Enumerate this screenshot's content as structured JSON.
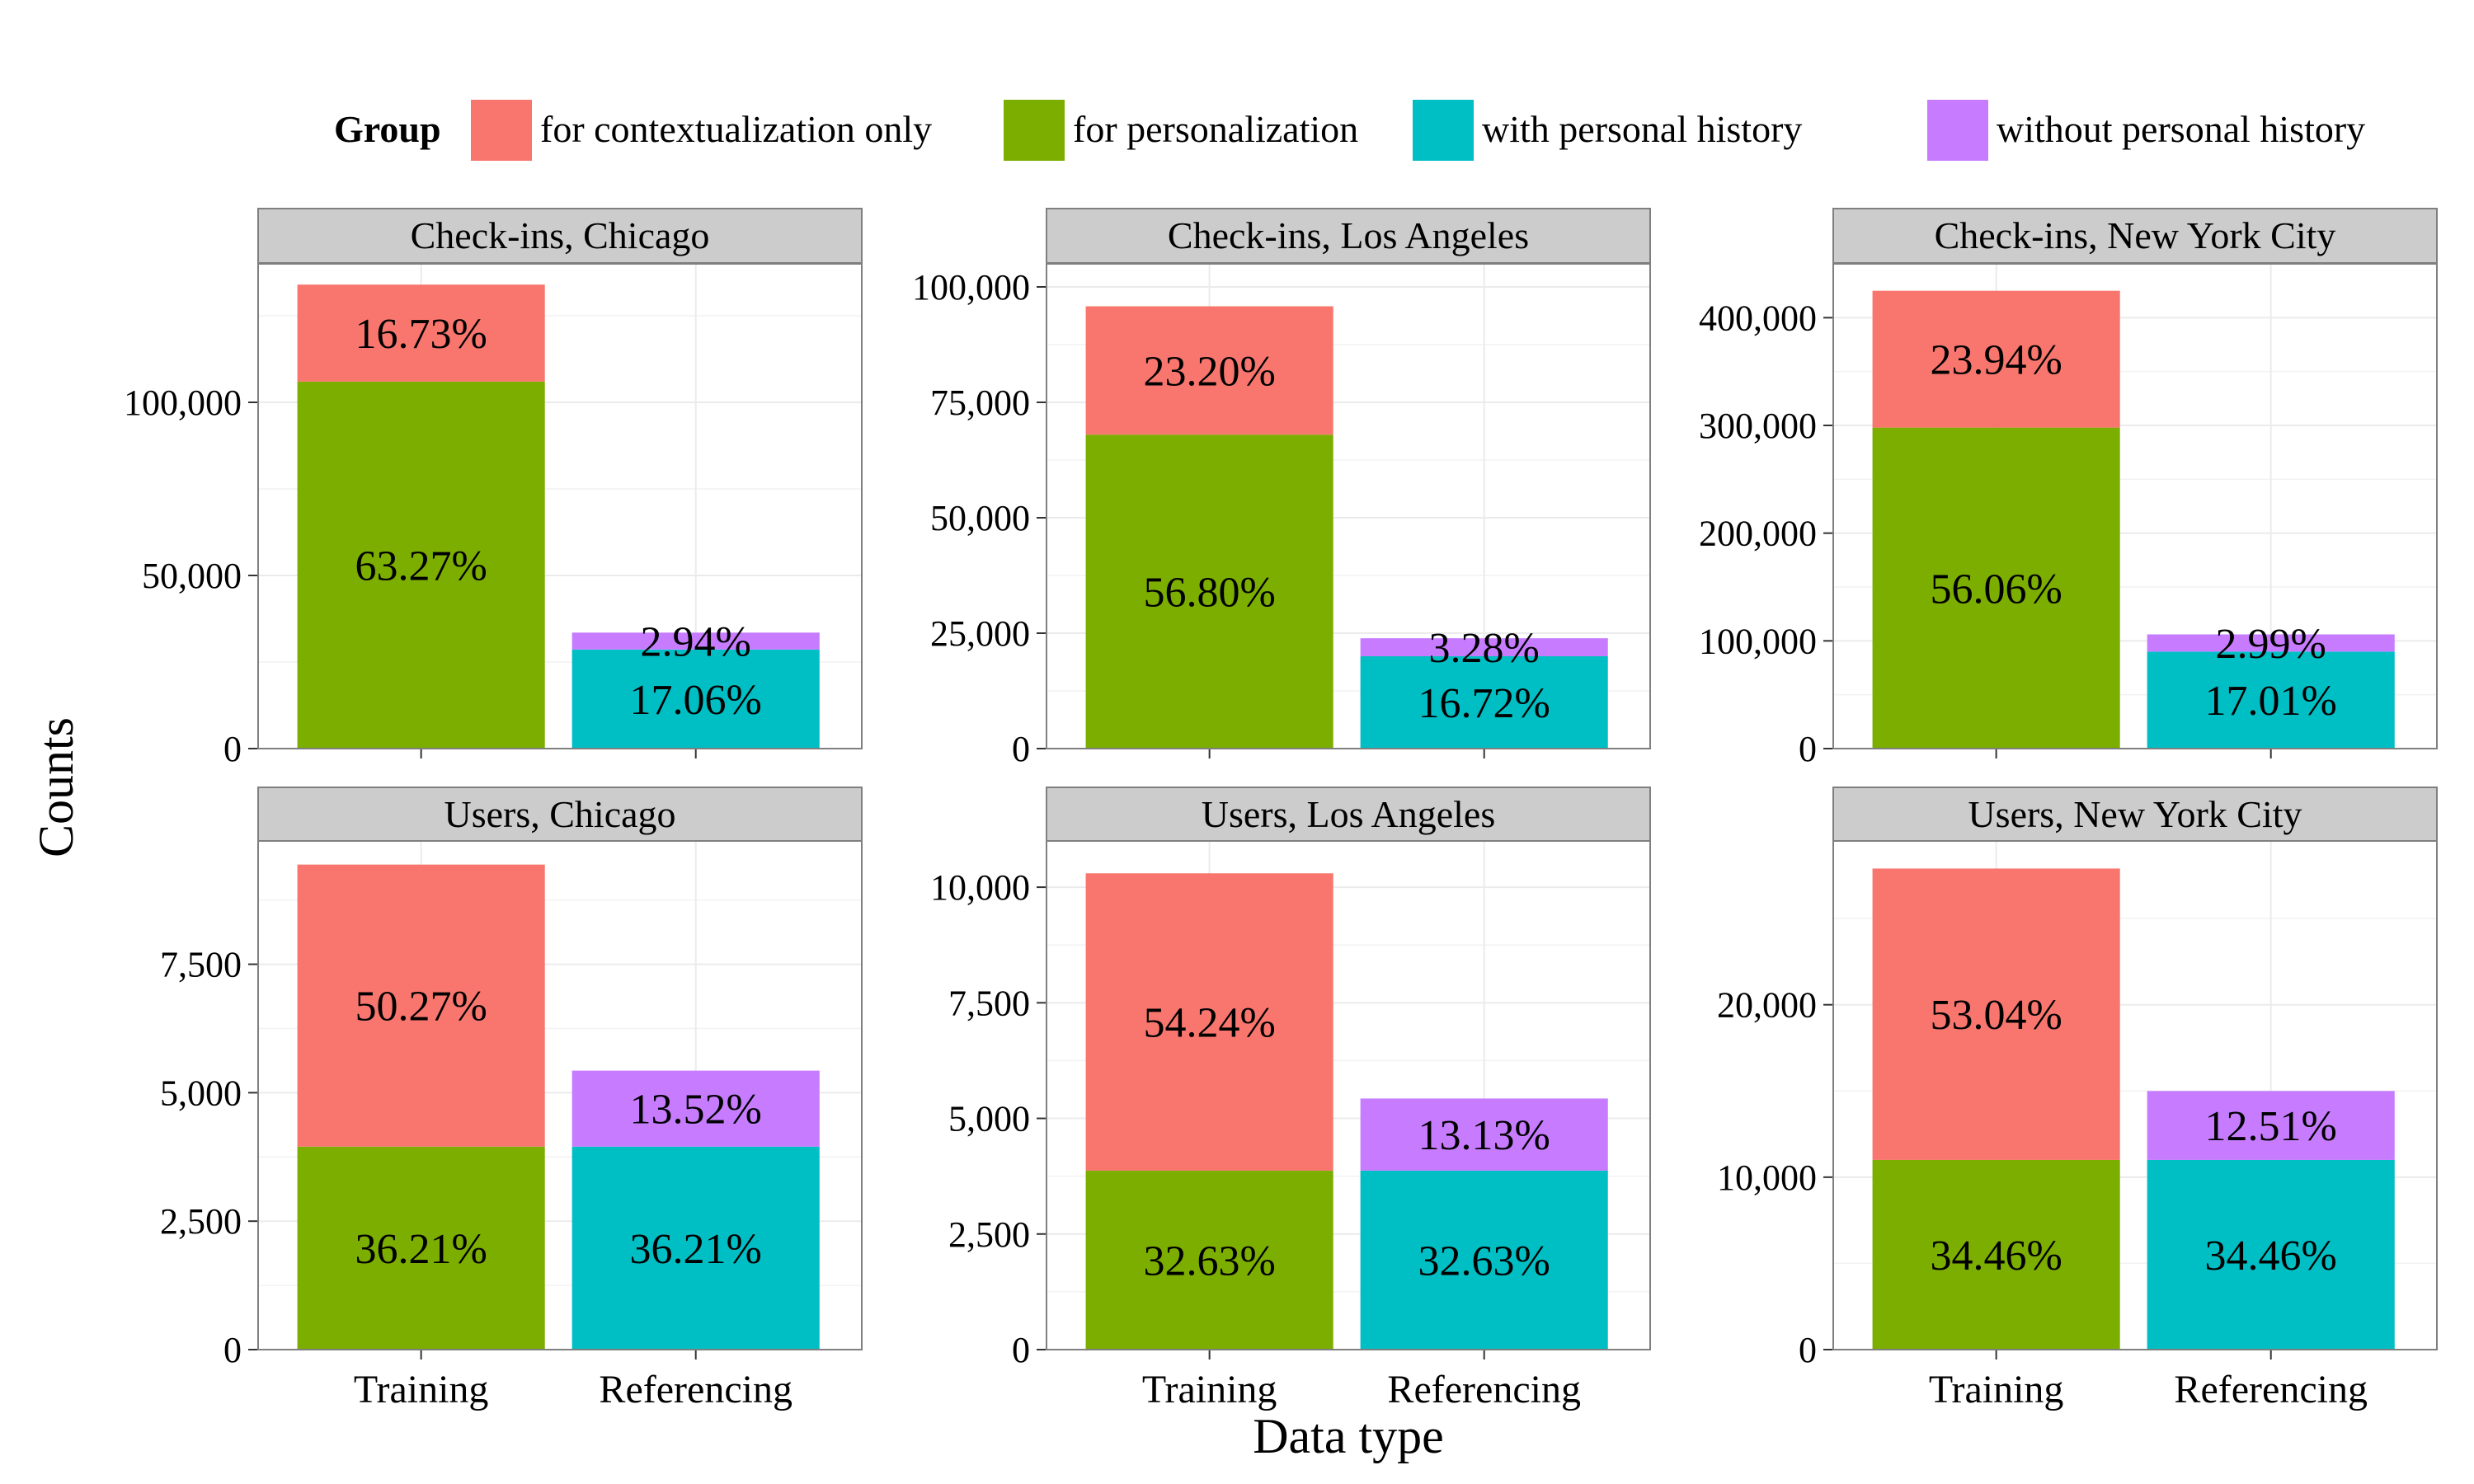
{
  "legend": {
    "title": "Group",
    "entries": [
      {
        "label": "for contextualization only",
        "color": "#F8766D"
      },
      {
        "label": "for personalization",
        "color": "#7CAE00"
      },
      {
        "label": "with personal history",
        "color": "#00BFC4"
      },
      {
        "label": "without personal history",
        "color": "#C77CFF"
      }
    ]
  },
  "axes": {
    "xlabel": "Data type",
    "ylabel": "Counts"
  },
  "chart_data": {
    "type": "bar",
    "stacked": true,
    "grid": true,
    "legend_position": "top",
    "categories": [
      "Training",
      "Referencing"
    ],
    "panels": [
      {
        "title": "Check-ins, Chicago",
        "ylim": [
          0,
          140000
        ],
        "yticks": [
          0,
          50000,
          100000
        ],
        "ytick_labels": [
          "0",
          "50,000",
          "100,000"
        ],
        "bars": [
          {
            "category": "Training",
            "segments": [
              {
                "group": "for personalization",
                "value": 106000,
                "label": "63.27%"
              },
              {
                "group": "for contextualization only",
                "value": 28000,
                "label": "16.73%"
              }
            ]
          },
          {
            "category": "Referencing",
            "segments": [
              {
                "group": "with personal history",
                "value": 28600,
                "label": "17.06%"
              },
              {
                "group": "without personal history",
                "value": 4900,
                "label": "2.94%"
              }
            ]
          }
        ]
      },
      {
        "title": "Check-ins, Los Angeles",
        "ylim": [
          0,
          105000
        ],
        "yticks": [
          0,
          25000,
          50000,
          75000,
          100000
        ],
        "ytick_labels": [
          "0",
          "25,000",
          "50,000",
          "75,000",
          "100,000"
        ],
        "bars": [
          {
            "category": "Training",
            "segments": [
              {
                "group": "for personalization",
                "value": 68000,
                "label": "56.80%"
              },
              {
                "group": "for contextualization only",
                "value": 27800,
                "label": "23.20%"
              }
            ]
          },
          {
            "category": "Referencing",
            "segments": [
              {
                "group": "with personal history",
                "value": 20000,
                "label": "16.72%"
              },
              {
                "group": "without personal history",
                "value": 3900,
                "label": "3.28%"
              }
            ]
          }
        ]
      },
      {
        "title": "Check-ins, New York City",
        "ylim": [
          0,
          450000
        ],
        "yticks": [
          0,
          100000,
          200000,
          300000,
          400000
        ],
        "ytick_labels": [
          "0",
          "100,000",
          "200,000",
          "300,000",
          "400,000"
        ],
        "bars": [
          {
            "category": "Training",
            "segments": [
              {
                "group": "for personalization",
                "value": 298000,
                "label": "56.06%"
              },
              {
                "group": "for contextualization only",
                "value": 127000,
                "label": "23.94%"
              }
            ]
          },
          {
            "category": "Referencing",
            "segments": [
              {
                "group": "with personal history",
                "value": 90000,
                "label": "17.01%"
              },
              {
                "group": "without personal history",
                "value": 16000,
                "label": "2.99%"
              }
            ]
          }
        ]
      },
      {
        "title": "Users, Chicago",
        "ylim": [
          0,
          9900
        ],
        "yticks": [
          0,
          2500,
          5000,
          7500
        ],
        "ytick_labels": [
          "0",
          "2,500",
          "5,000",
          "7,500"
        ],
        "bars": [
          {
            "category": "Training",
            "segments": [
              {
                "group": "for personalization",
                "value": 3950,
                "label": "36.21%"
              },
              {
                "group": "for contextualization only",
                "value": 5490,
                "label": "50.27%"
              }
            ]
          },
          {
            "category": "Referencing",
            "segments": [
              {
                "group": "with personal history",
                "value": 3950,
                "label": "36.21%"
              },
              {
                "group": "without personal history",
                "value": 1480,
                "label": "13.52%"
              }
            ]
          }
        ]
      },
      {
        "title": "Users, Los Angeles",
        "ylim": [
          0,
          11000
        ],
        "yticks": [
          0,
          2500,
          5000,
          7500,
          10000
        ],
        "ytick_labels": [
          "0",
          "2,500",
          "5,000",
          "7,500",
          "10,000"
        ],
        "bars": [
          {
            "category": "Training",
            "segments": [
              {
                "group": "for personalization",
                "value": 3870,
                "label": "32.63%"
              },
              {
                "group": "for contextualization only",
                "value": 6430,
                "label": "54.24%"
              }
            ]
          },
          {
            "category": "Referencing",
            "segments": [
              {
                "group": "with personal history",
                "value": 3870,
                "label": "32.63%"
              },
              {
                "group": "without personal history",
                "value": 1560,
                "label": "13.13%"
              }
            ]
          }
        ]
      },
      {
        "title": "Users, New York City",
        "ylim": [
          0,
          29500
        ],
        "yticks": [
          0,
          10000,
          20000
        ],
        "ytick_labels": [
          "0",
          "10,000",
          "20,000"
        ],
        "bars": [
          {
            "category": "Training",
            "segments": [
              {
                "group": "for personalization",
                "value": 11000,
                "label": "34.46%"
              },
              {
                "group": "for contextualization only",
                "value": 16900,
                "label": "53.04%"
              }
            ]
          },
          {
            "category": "Referencing",
            "segments": [
              {
                "group": "with personal history",
                "value": 11000,
                "label": "34.46%"
              },
              {
                "group": "without personal history",
                "value": 4000,
                "label": "12.51%"
              }
            ]
          }
        ]
      }
    ]
  }
}
